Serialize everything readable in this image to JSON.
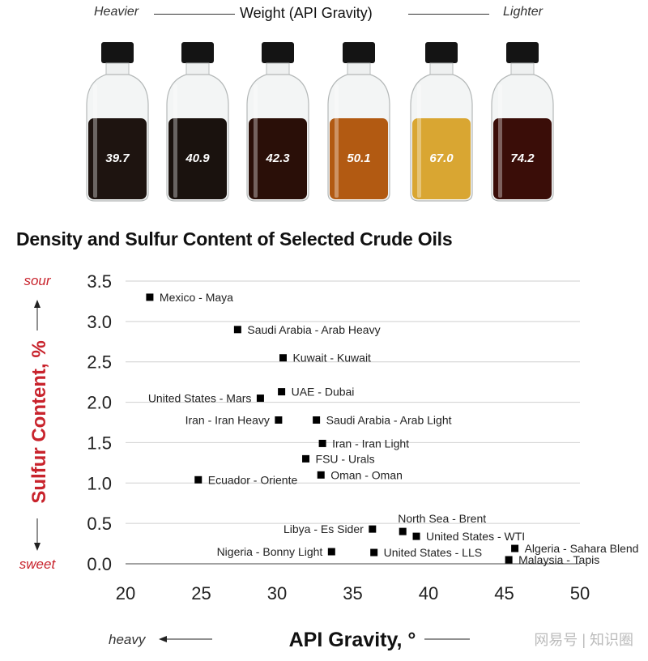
{
  "header": {
    "left_label": "Heavier",
    "center_label": "Weight (API Gravity)",
    "right_label": "Lighter"
  },
  "bottles": [
    {
      "label": "39.7",
      "liquid_color": "#1e1410"
    },
    {
      "label": "40.9",
      "liquid_color": "#1a120e"
    },
    {
      "label": "42.3",
      "liquid_color": "#2a0f08"
    },
    {
      "label": "50.1",
      "liquid_color": "#b25a12"
    },
    {
      "label": "67.0",
      "liquid_color": "#d9a632"
    },
    {
      "label": "74.2",
      "liquid_color": "#3a0d08"
    }
  ],
  "chart_data": {
    "type": "scatter",
    "title": "Density and Sulfur Content of Selected Crude Oils",
    "xlabel": "API Gravity, °",
    "ylabel": "Sulfur Content, %",
    "xlim": [
      20,
      50
    ],
    "ylim": [
      0.0,
      3.5
    ],
    "xticks": [
      "20",
      "25",
      "30",
      "35",
      "40",
      "45",
      "50"
    ],
    "yticks": [
      "0.0",
      "0.5",
      "1.0",
      "1.5",
      "2.0",
      "2.5",
      "3.0",
      "3.5"
    ],
    "grid": "horizontal",
    "y_top_annotation": "sour",
    "y_bottom_annotation": "sweet",
    "x_left_annotation": "heavy",
    "points": [
      {
        "label": "Mexico - Maya",
        "x": 21.6,
        "y": 3.3,
        "side": "right"
      },
      {
        "label": "Saudi Arabia - Arab Heavy",
        "x": 27.4,
        "y": 2.9,
        "side": "right"
      },
      {
        "label": "Kuwait - Kuwait",
        "x": 30.4,
        "y": 2.55,
        "side": "right"
      },
      {
        "label": "UAE - Dubai",
        "x": 30.3,
        "y": 2.13,
        "side": "right"
      },
      {
        "label": "United States - Mars",
        "x": 28.9,
        "y": 2.05,
        "side": "left"
      },
      {
        "label": "Iran - Iran Heavy",
        "x": 30.1,
        "y": 1.78,
        "side": "left"
      },
      {
        "label": "Saudi Arabia - Arab Light",
        "x": 32.6,
        "y": 1.78,
        "side": "right"
      },
      {
        "label": "Iran - Iran Light",
        "x": 33.0,
        "y": 1.49,
        "side": "right"
      },
      {
        "label": "FSU - Urals",
        "x": 31.9,
        "y": 1.3,
        "side": "right"
      },
      {
        "label": "Oman - Oman",
        "x": 32.9,
        "y": 1.1,
        "side": "right"
      },
      {
        "label": "Ecuador - Oriente",
        "x": 24.8,
        "y": 1.04,
        "side": "right"
      },
      {
        "label": "North Sea - Brent",
        "x": 38.3,
        "y": 0.4,
        "side": "above"
      },
      {
        "label": "Libya - Es Sider",
        "x": 36.3,
        "y": 0.43,
        "side": "left"
      },
      {
        "label": "United States - WTI",
        "x": 39.2,
        "y": 0.34,
        "side": "right"
      },
      {
        "label": "Algeria - Sahara Blend",
        "x": 45.7,
        "y": 0.19,
        "side": "right"
      },
      {
        "label": "Nigeria - Bonny Light",
        "x": 33.6,
        "y": 0.15,
        "side": "left"
      },
      {
        "label": "United States - LLS",
        "x": 36.4,
        "y": 0.14,
        "side": "right"
      },
      {
        "label": "Malaysia - Tapis",
        "x": 45.3,
        "y": 0.05,
        "side": "right"
      }
    ]
  },
  "watermark": "网易号 | 知识圈",
  "colors": {
    "ylabel": "#c8232c",
    "annotation": "#c8232c",
    "marker": "#000000",
    "grid": "#cfcfcf"
  }
}
